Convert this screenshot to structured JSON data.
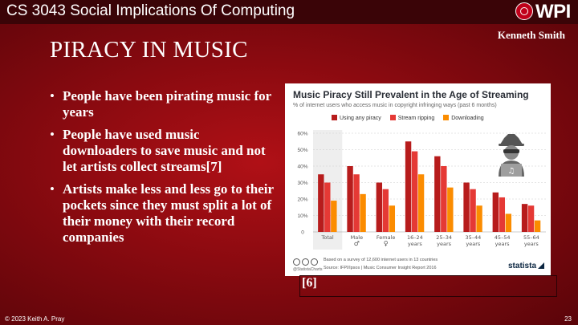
{
  "header": {
    "course_title": "CS 3043 Social Implications Of Computing",
    "logo_text": "WPI",
    "author": "Kenneth Smith"
  },
  "slide": {
    "title": "PIRACY IN MUSIC",
    "bullets": [
      "People have been pirating music for years",
      "People have used music downloaders to save music and not let artists collect streams[7]",
      "Artists make less and less go to their pockets since they must split a lot of their money with their record companies"
    ],
    "citation": "[6]"
  },
  "footer": {
    "copyright": "© 2023 Keith A. Pray",
    "page_number": "23"
  },
  "chart_card": {
    "survey_note": "Based on a survey of 12,600 internet users in 13 countries",
    "source_note": "Source: IFPI/Ipsos | Music Consumer Insight Report 2016",
    "handle": "@StatistaCharts",
    "brand": "statista"
  },
  "colors": {
    "any_piracy": "#b71c1c",
    "stream_ripping": "#e53935",
    "downloading": "#fb8c00",
    "total_highlight": "#eeeeee"
  },
  "chart_data": {
    "type": "bar",
    "title": "Music Piracy Still Prevalent in the Age of Streaming",
    "subtitle": "% of internet users who access music in copyright infringing ways (past 6 months)",
    "categories": [
      [
        "Total"
      ],
      [
        "Male",
        "♂"
      ],
      [
        "Female",
        "♀"
      ],
      [
        "16–24",
        "years"
      ],
      [
        "25–34",
        "years"
      ],
      [
        "35–44",
        "years"
      ],
      [
        "45–54",
        "years"
      ],
      [
        "55–64",
        "years"
      ]
    ],
    "series": [
      {
        "name": "Using any piracy",
        "values": [
          35,
          40,
          30,
          55,
          46,
          30,
          24,
          17
        ]
      },
      {
        "name": "Stream ripping",
        "values": [
          30,
          35,
          26,
          49,
          40,
          26,
          21,
          16
        ]
      },
      {
        "name": "Downloading",
        "values": [
          19,
          23,
          16,
          35,
          27,
          16,
          11,
          7
        ]
      }
    ],
    "yticks": [
      "0",
      "10%",
      "20%",
      "30%",
      "40%",
      "50%",
      "60%"
    ],
    "ylim": [
      0,
      60
    ],
    "grid": true,
    "legend": "top"
  }
}
